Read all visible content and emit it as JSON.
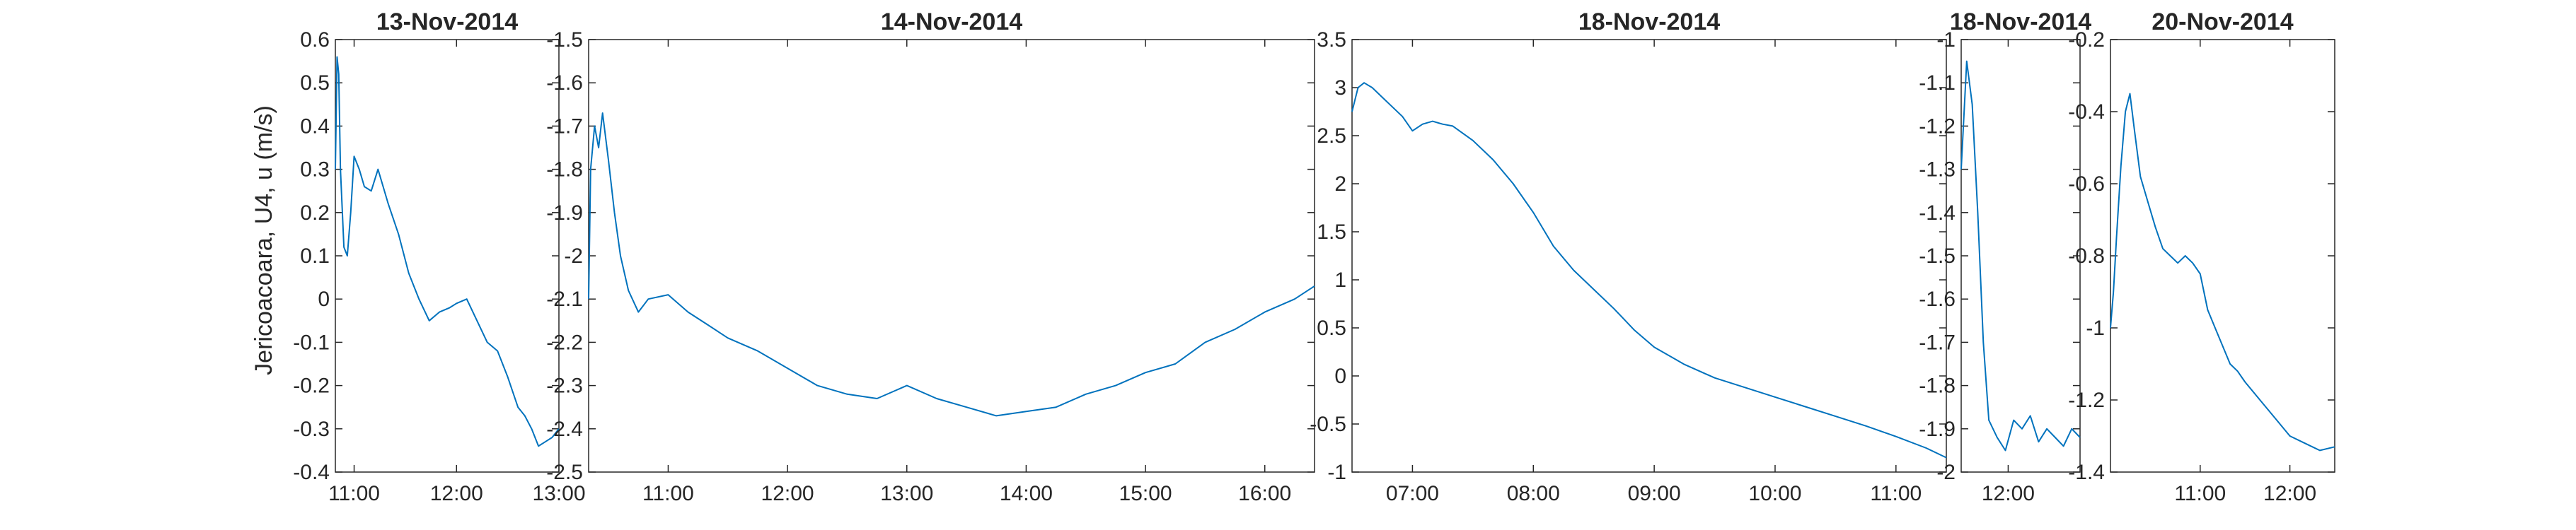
{
  "figure": {
    "ylabel": "Jericoacoara, U4, u (m/s)",
    "line_color": "#0072BD"
  },
  "chart_data": [
    {
      "type": "line",
      "title": "13-Nov-2014",
      "ylabel": "Jericoacoara, U4, u (m/s)",
      "xlim": [
        "10:49",
        "13:00"
      ],
      "ylim": [
        -0.4,
        0.6
      ],
      "xticks": [
        "11:00",
        "12:00",
        "13:00"
      ],
      "yticks": [
        0.6,
        0.5,
        0.4,
        0.3,
        0.2,
        0.1,
        0,
        -0.1,
        -0.2,
        -0.3,
        -0.4
      ],
      "series": [
        {
          "x": [
            "10:49",
            "10:50",
            "10:51",
            "10:52",
            "10:54",
            "10:56",
            "10:58",
            "11:00",
            "11:03",
            "11:06",
            "11:10",
            "11:14",
            "11:20",
            "11:26",
            "11:32",
            "11:38",
            "11:44",
            "11:50",
            "11:56",
            "12:00",
            "12:06",
            "12:12",
            "12:18",
            "12:24",
            "12:30",
            "12:36",
            "12:40",
            "12:44",
            "12:48",
            "12:52",
            "12:56",
            "13:00"
          ],
          "y": [
            0.3,
            0.56,
            0.52,
            0.3,
            0.12,
            0.1,
            0.2,
            0.33,
            0.3,
            0.26,
            0.25,
            0.3,
            0.22,
            0.15,
            0.06,
            0.0,
            -0.05,
            -0.03,
            -0.02,
            -0.01,
            0.0,
            -0.05,
            -0.1,
            -0.12,
            -0.18,
            -0.25,
            -0.27,
            -0.3,
            -0.34,
            -0.33,
            -0.32,
            -0.3
          ]
        }
      ]
    },
    {
      "type": "line",
      "title": "14-Nov-2014",
      "xlim": [
        "10:20",
        "16:25"
      ],
      "ylim": [
        -2.5,
        -1.5
      ],
      "xticks": [
        "11:00",
        "12:00",
        "13:00",
        "14:00",
        "15:00",
        "16:00"
      ],
      "yticks": [
        -1.5,
        -1.6,
        -1.7,
        -1.8,
        -1.9,
        -2,
        -2.1,
        -2.2,
        -2.3,
        -2.4,
        -2.5
      ],
      "series": [
        {
          "x": [
            "10:20",
            "10:21",
            "10:23",
            "10:25",
            "10:27",
            "10:30",
            "10:33",
            "10:36",
            "10:40",
            "10:45",
            "10:50",
            "11:00",
            "11:10",
            "11:20",
            "11:30",
            "11:45",
            "12:00",
            "12:15",
            "12:30",
            "12:45",
            "13:00",
            "13:15",
            "13:30",
            "13:45",
            "14:00",
            "14:15",
            "14:30",
            "14:45",
            "15:00",
            "15:15",
            "15:30",
            "15:45",
            "16:00",
            "16:15",
            "16:25"
          ],
          "y": [
            -2.1,
            -1.8,
            -1.7,
            -1.75,
            -1.67,
            -1.78,
            -1.9,
            -2.0,
            -2.08,
            -2.13,
            -2.1,
            -2.09,
            -2.13,
            -2.16,
            -2.19,
            -2.22,
            -2.26,
            -2.3,
            -2.32,
            -2.33,
            -2.3,
            -2.33,
            -2.35,
            -2.37,
            -2.36,
            -2.35,
            -2.32,
            -2.3,
            -2.27,
            -2.25,
            -2.2,
            -2.17,
            -2.13,
            -2.1,
            -2.07
          ]
        }
      ]
    },
    {
      "type": "line",
      "title": "18-Nov-2014",
      "xlim": [
        "06:30",
        "11:25"
      ],
      "ylim": [
        -1,
        3.5
      ],
      "xticks": [
        "07:00",
        "08:00",
        "09:00",
        "10:00",
        "11:00"
      ],
      "yticks": [
        3.5,
        3,
        2.5,
        2,
        1.5,
        1,
        0.5,
        0,
        -0.5,
        -1
      ],
      "series": [
        {
          "x": [
            "06:30",
            "06:33",
            "06:36",
            "06:40",
            "06:45",
            "06:50",
            "06:55",
            "07:00",
            "07:05",
            "07:10",
            "07:15",
            "07:20",
            "07:30",
            "07:40",
            "07:50",
            "08:00",
            "08:10",
            "08:20",
            "08:30",
            "08:40",
            "08:50",
            "09:00",
            "09:15",
            "09:30",
            "09:45",
            "10:00",
            "10:15",
            "10:30",
            "10:45",
            "11:00",
            "11:15",
            "11:25"
          ],
          "y": [
            2.75,
            3.0,
            3.05,
            3.0,
            2.9,
            2.8,
            2.7,
            2.55,
            2.62,
            2.65,
            2.62,
            2.6,
            2.45,
            2.25,
            2.0,
            1.7,
            1.35,
            1.1,
            0.9,
            0.7,
            0.48,
            0.3,
            0.12,
            -0.02,
            -0.12,
            -0.22,
            -0.32,
            -0.42,
            -0.52,
            -0.63,
            -0.75,
            -0.85
          ]
        }
      ]
    },
    {
      "type": "line",
      "title": "18-Nov-2014",
      "xlim": [
        "11:43",
        "12:26"
      ],
      "ylim": [
        -2,
        -1
      ],
      "xticks": [
        "12:00"
      ],
      "yticks": [
        -1,
        -1.1,
        -1.2,
        -1.3,
        -1.4,
        -1.5,
        -1.6,
        -1.7,
        -1.8,
        -1.9,
        -2
      ],
      "series": [
        {
          "x": [
            "11:43",
            "11:45",
            "11:47",
            "11:49",
            "11:51",
            "11:53",
            "11:56",
            "11:59",
            "12:02",
            "12:05",
            "12:08",
            "12:11",
            "12:14",
            "12:17",
            "12:20",
            "12:23",
            "12:26"
          ],
          "y": [
            -1.3,
            -1.05,
            -1.15,
            -1.4,
            -1.7,
            -1.88,
            -1.92,
            -1.95,
            -1.88,
            -1.9,
            -1.87,
            -1.93,
            -1.9,
            -1.92,
            -1.94,
            -1.9,
            -1.92
          ]
        }
      ]
    },
    {
      "type": "line",
      "title": "20-Nov-2014",
      "xlim": [
        "10:00",
        "12:30"
      ],
      "ylim": [
        -1.4,
        -0.2
      ],
      "xticks": [
        "11:00",
        "12:00"
      ],
      "yticks": [
        -0.2,
        -0.4,
        -0.6,
        -0.8,
        -1,
        -1.2,
        -1.4
      ],
      "series": [
        {
          "x": [
            "10:00",
            "10:02",
            "10:04",
            "10:07",
            "10:10",
            "10:13",
            "10:16",
            "10:20",
            "10:25",
            "10:30",
            "10:35",
            "10:40",
            "10:45",
            "10:50",
            "10:55",
            "11:00",
            "11:05",
            "11:10",
            "11:15",
            "11:20",
            "11:25",
            "11:30",
            "11:40",
            "11:50",
            "12:00",
            "12:10",
            "12:20",
            "12:30"
          ],
          "y": [
            -1.0,
            -0.9,
            -0.75,
            -0.55,
            -0.4,
            -0.35,
            -0.45,
            -0.58,
            -0.65,
            -0.72,
            -0.78,
            -0.8,
            -0.82,
            -0.8,
            -0.82,
            -0.85,
            -0.95,
            -1.0,
            -1.05,
            -1.1,
            -1.12,
            -1.15,
            -1.2,
            -1.25,
            -1.3,
            -1.32,
            -1.34,
            -1.33
          ]
        }
      ]
    }
  ]
}
